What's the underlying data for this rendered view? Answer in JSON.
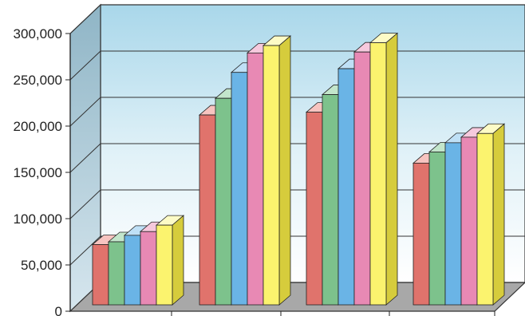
{
  "chart_data": {
    "type": "bar",
    "style": "3d-clustered",
    "categories": [
      "",
      "",
      "",
      ""
    ],
    "series": [
      {
        "color": "#e0736c",
        "top_color": "#f7c4c0",
        "side_color": "#b8504a",
        "values": [
          72000,
          212000,
          215000,
          160000
        ]
      },
      {
        "color": "#7dc28c",
        "top_color": "#c3e6cb",
        "side_color": "#559c66",
        "values": [
          75000,
          230000,
          234000,
          172000
        ]
      },
      {
        "color": "#6ab4e6",
        "top_color": "#bfe0f6",
        "side_color": "#4b8fbf",
        "values": [
          82000,
          258000,
          262000,
          182000
        ]
      },
      {
        "color": "#e889b4",
        "top_color": "#f6c9dd",
        "side_color": "#c0608c",
        "values": [
          86000,
          279000,
          280000,
          188000
        ]
      },
      {
        "color": "#fbf36e",
        "top_color": "#fdfbc6",
        "side_color": "#d6cc3c",
        "values": [
          93000,
          287000,
          290000,
          192000
        ]
      }
    ],
    "yticks": [
      "0",
      "50,000",
      "100,000",
      "150,000",
      "200,000",
      "250,000",
      "300,000"
    ],
    "tick_values": [
      0,
      50000,
      100000,
      150000,
      200000,
      250000,
      300000
    ],
    "ylim": [
      0,
      300000
    ],
    "grid": true,
    "legend": "none"
  }
}
